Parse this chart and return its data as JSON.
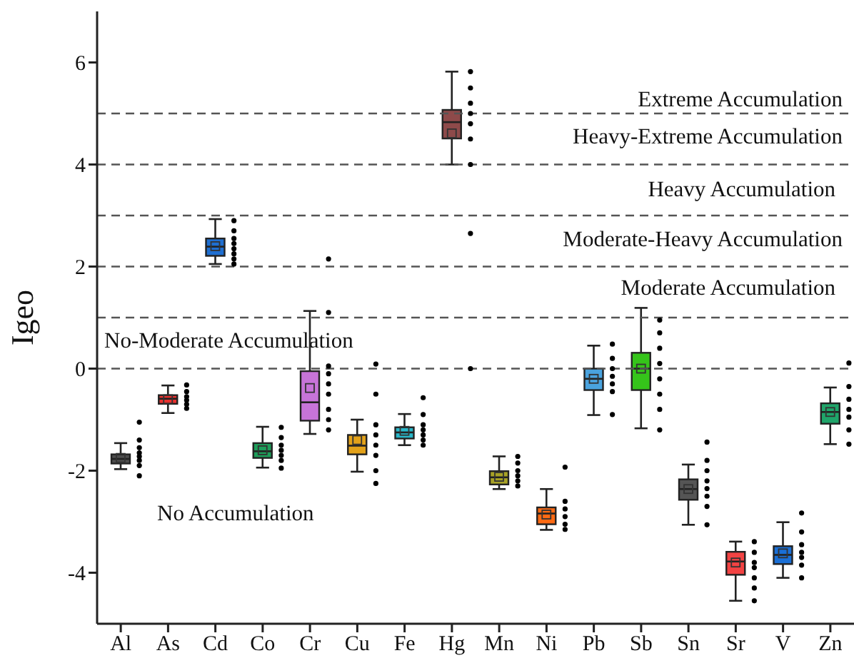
{
  "chart_data": {
    "type": "box",
    "ylabel": "Igeo",
    "categories": [
      "Al",
      "As",
      "Cd",
      "Co",
      "Cr",
      "Cu",
      "Fe",
      "Hg",
      "Mn",
      "Ni",
      "Pb",
      "Sb",
      "Sn",
      "Sr",
      "V",
      "Zn"
    ],
    "colors": [
      "#4d4d4d",
      "#e8312f",
      "#1f6fd1",
      "#1e9e5a",
      "#c774d8",
      "#e3a21a",
      "#2ab7c9",
      "#8e4a4a",
      "#a8a226",
      "#ff6a13",
      "#4aa3df",
      "#35c41a",
      "#555555",
      "#f24343",
      "#1a6fd6",
      "#1fa56a"
    ],
    "boxes": [
      {
        "low": -1.97,
        "q1": -1.86,
        "median": -1.77,
        "q3": -1.68,
        "high": -1.46,
        "mean": -1.75
      },
      {
        "low": -0.87,
        "q1": -0.69,
        "median": -0.59,
        "q3": -0.52,
        "high": -0.33,
        "mean": -0.6
      },
      {
        "low": 2.05,
        "q1": 2.21,
        "median": 2.39,
        "q3": 2.55,
        "high": 2.93,
        "mean": 2.4
      },
      {
        "low": -1.94,
        "q1": -1.75,
        "median": -1.62,
        "q3": -1.46,
        "high": -1.14,
        "mean": -1.6
      },
      {
        "low": -1.28,
        "q1": -1.02,
        "median": -0.66,
        "q3": -0.05,
        "high": 1.13,
        "mean": -0.38
      },
      {
        "low": -2.02,
        "q1": -1.68,
        "median": -1.51,
        "q3": -1.3,
        "high": -1.0,
        "mean": -1.4
      },
      {
        "low": -1.5,
        "q1": -1.37,
        "median": -1.25,
        "q3": -1.15,
        "high": -0.89,
        "mean": -1.22
      },
      {
        "low": 4.0,
        "q1": 4.51,
        "median": 4.83,
        "q3": 5.07,
        "high": 5.82,
        "mean": 4.61
      },
      {
        "low": -2.36,
        "q1": -2.27,
        "median": -2.13,
        "q3": -2.01,
        "high": -1.72,
        "mean": -2.12
      },
      {
        "low": -3.16,
        "q1": -3.05,
        "median": -2.84,
        "q3": -2.72,
        "high": -2.36,
        "mean": -2.86
      },
      {
        "low": -0.91,
        "q1": -0.42,
        "median": -0.2,
        "q3": 0.0,
        "high": 0.45,
        "mean": -0.2
      },
      {
        "low": -1.17,
        "q1": -0.42,
        "median": 0.0,
        "q3": 0.31,
        "high": 1.19,
        "mean": 0.0
      },
      {
        "low": -3.06,
        "q1": -2.57,
        "median": -2.36,
        "q3": -2.17,
        "high": -1.88,
        "mean": -2.36
      },
      {
        "low": -4.55,
        "q1": -4.04,
        "median": -3.78,
        "q3": -3.59,
        "high": -3.39,
        "mean": -3.8
      },
      {
        "low": -4.1,
        "q1": -3.83,
        "median": -3.65,
        "q3": -3.48,
        "high": -3.01,
        "mean": -3.62
      },
      {
        "low": -1.48,
        "q1": -1.08,
        "median": -0.85,
        "q3": -0.68,
        "high": -0.37,
        "mean": -0.85
      }
    ],
    "series": [
      {
        "type": "scatter",
        "color": "#000000",
        "x": [
          "Al",
          "Al",
          "Al",
          "Al",
          "Al",
          "Al",
          "Al",
          "Al",
          "As",
          "As",
          "As",
          "As",
          "As",
          "As",
          "Cd",
          "Cd",
          "Cd",
          "Cd",
          "Cd",
          "Cd",
          "Cd",
          "Cd",
          "Co",
          "Co",
          "Co",
          "Co",
          "Co",
          "Co",
          "Co",
          "Cr",
          "Cr",
          "Cr",
          "Cr",
          "Cr",
          "Cr",
          "Cr",
          "Cr",
          "Cr",
          "Cu",
          "Cu",
          "Cu",
          "Cu",
          "Cu",
          "Cu",
          "Cu",
          "Cu",
          "Fe",
          "Fe",
          "Fe",
          "Fe",
          "Fe",
          "Fe",
          "Fe",
          "Hg",
          "Hg",
          "Hg",
          "Hg",
          "Hg",
          "Hg",
          "Hg",
          "Hg",
          "Hg",
          "Mn",
          "Mn",
          "Mn",
          "Mn",
          "Mn",
          "Mn",
          "Ni",
          "Ni",
          "Ni",
          "Ni",
          "Ni",
          "Ni",
          "Pb",
          "Pb",
          "Pb",
          "Pb",
          "Pb",
          "Pb",
          "Pb",
          "Sb",
          "Sb",
          "Sb",
          "Sb",
          "Sb",
          "Sb",
          "Sb",
          "Sb",
          "Sn",
          "Sn",
          "Sn",
          "Sn",
          "Sn",
          "Sn",
          "Sn",
          "Sn",
          "Sr",
          "Sr",
          "Sr",
          "Sr",
          "Sr",
          "Sr",
          "Sr",
          "V",
          "V",
          "V",
          "V",
          "V",
          "V",
          "V",
          "Zn",
          "Zn",
          "Zn",
          "Zn",
          "Zn",
          "Zn",
          "Zn"
        ],
        "values": [
          -1.05,
          -1.4,
          -1.55,
          -1.65,
          -1.72,
          -1.8,
          -1.9,
          -2.1,
          -0.32,
          -0.45,
          -0.55,
          -0.62,
          -0.7,
          -0.78,
          2.9,
          2.7,
          2.55,
          2.45,
          2.35,
          2.25,
          2.15,
          2.05,
          -1.15,
          -1.35,
          -1.5,
          -1.6,
          -1.7,
          -1.8,
          -1.95,
          2.15,
          1.1,
          0.05,
          -0.1,
          -0.3,
          -0.5,
          -0.8,
          -1.0,
          -1.2,
          0.09,
          -0.5,
          -1.1,
          -1.3,
          -1.5,
          -1.7,
          -2.0,
          -2.25,
          -0.57,
          -0.9,
          -1.1,
          -1.2,
          -1.3,
          -1.4,
          -1.5,
          5.82,
          5.5,
          5.2,
          5.0,
          4.8,
          4.5,
          4.0,
          2.65,
          0.0,
          -1.72,
          -1.85,
          -2.0,
          -2.1,
          -2.2,
          -2.3,
          -1.93,
          -2.6,
          -2.75,
          -2.9,
          -3.05,
          -3.15,
          0.48,
          0.2,
          0.0,
          -0.15,
          -0.3,
          -0.45,
          -0.9,
          0.95,
          0.7,
          0.4,
          0.1,
          -0.2,
          -0.5,
          -0.8,
          -1.2,
          -1.44,
          -1.8,
          -2.0,
          -2.2,
          -2.35,
          -2.5,
          -2.7,
          -3.06,
          -3.39,
          -3.6,
          -3.8,
          -3.9,
          -4.1,
          -4.3,
          -4.55,
          -2.83,
          -3.2,
          -3.45,
          -3.6,
          -3.7,
          -3.85,
          -4.1,
          0.11,
          -0.35,
          -0.6,
          -0.8,
          -0.95,
          -1.2,
          -1.48
        ]
      }
    ],
    "ylim": [
      -5,
      7
    ],
    "yticks": [
      -4,
      -2,
      0,
      2,
      4,
      6
    ],
    "marker": "circle",
    "ref_lines": [
      {
        "axis": "y",
        "value": 0,
        "color": "#555555",
        "line_style": "dashed"
      },
      {
        "axis": "y",
        "value": 1,
        "color": "#555555",
        "line_style": "dashed"
      },
      {
        "axis": "y",
        "value": 2,
        "color": "#555555",
        "line_style": "dashed"
      },
      {
        "axis": "y",
        "value": 3,
        "color": "#555555",
        "line_style": "dashed"
      },
      {
        "axis": "y",
        "value": 4,
        "color": "#555555",
        "line_style": "dashed"
      },
      {
        "axis": "y",
        "value": 5,
        "color": "#555555",
        "line_style": "dashed"
      }
    ],
    "annotations": [
      "Extreme Accumulation",
      "Heavy-Extreme Accumulation",
      "Heavy Accumulation",
      "Moderate-Heavy Accumulation",
      "Moderate Accumulation",
      "No-Moderate Accumulation",
      "No Accumulation"
    ]
  }
}
